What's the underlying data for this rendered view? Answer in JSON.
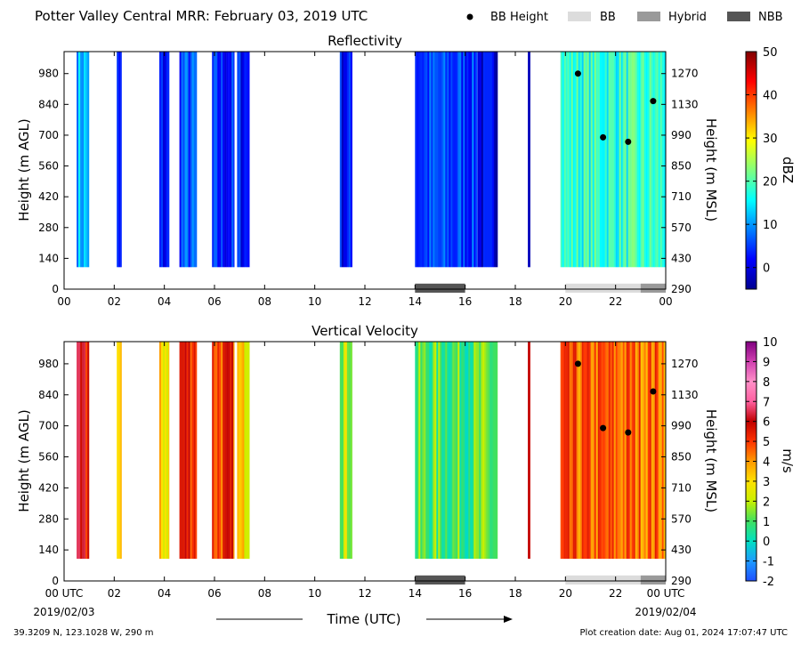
{
  "header": {
    "title": "Potter Valley Central MRR:  February 03, 2019 UTC",
    "legend": [
      {
        "label": "BB Height",
        "kind": "dot",
        "color": "#000000"
      },
      {
        "label": "BB",
        "kind": "box",
        "color": "#dcdcdc"
      },
      {
        "label": "Hybrid",
        "kind": "box",
        "color": "#9a9a9a"
      },
      {
        "label": "NBB",
        "kind": "box",
        "color": "#555555"
      }
    ]
  },
  "footer": {
    "location": "39.3209 N, 123.1028 W, 290 m",
    "creation": "Plot creation date: Aug 01, 2024 17:07:47 UTC",
    "xlabel": "Time (UTC)",
    "start_date": "2019/02/03",
    "end_date": "2019/02/04"
  },
  "chart_data": [
    {
      "type": "heatmap",
      "title": "Reflectivity",
      "ylabel_left": "Height (m AGL)",
      "ylabel_right": "Height (m MSL)",
      "colorbar_label": "dBZ",
      "colorbar_ticks": [
        "50",
        "40",
        "30",
        "20",
        "10",
        "0"
      ],
      "colorbar_range": [
        -5,
        50
      ],
      "xlim": [
        0,
        24
      ],
      "ylim": [
        0,
        1080
      ],
      "x_ticks": [
        "00",
        "02",
        "04",
        "06",
        "08",
        "10",
        "12",
        "14",
        "16",
        "18",
        "20",
        "22",
        "00"
      ],
      "y_ticks_agl": [
        "0",
        "140",
        "280",
        "420",
        "560",
        "700",
        "840",
        "980"
      ],
      "y_ticks_msl": [
        "290",
        "430",
        "570",
        "710",
        "850",
        "990",
        "1130",
        "1270"
      ],
      "precip_segments": [
        {
          "start": 0.5,
          "end": 1.0,
          "value": 12
        },
        {
          "start": 2.1,
          "end": 2.3,
          "value": 2
        },
        {
          "start": 3.8,
          "end": 4.2,
          "value": 2
        },
        {
          "start": 4.6,
          "end": 5.3,
          "value": 6
        },
        {
          "start": 5.9,
          "end": 6.8,
          "value": 3
        },
        {
          "start": 6.9,
          "end": 7.4,
          "value": 3
        },
        {
          "start": 11.0,
          "end": 11.5,
          "value": 2
        },
        {
          "start": 14.0,
          "end": 16.5,
          "value": 5
        },
        {
          "start": 16.5,
          "end": 17.3,
          "value": 0
        },
        {
          "start": 18.5,
          "end": 18.6,
          "value": 2
        },
        {
          "start": 19.8,
          "end": 24.0,
          "value": 18
        }
      ],
      "bb_height_points": [
        {
          "x": 20.5,
          "y": 980
        },
        {
          "x": 21.5,
          "y": 690
        },
        {
          "x": 22.5,
          "y": 670
        },
        {
          "x": 23.5,
          "y": 855
        }
      ],
      "rain_type_bars": [
        {
          "type": "NBB",
          "start": 14.0,
          "end": 16.0
        },
        {
          "type": "BB",
          "start": 20.0,
          "end": 23.0
        },
        {
          "type": "Hybrid",
          "start": 23.0,
          "end": 24.0
        }
      ]
    },
    {
      "type": "heatmap",
      "title": "Vertical Velocity",
      "ylabel_left": "Height (m AGL)",
      "ylabel_right": "Height (m MSL)",
      "colorbar_label": "m/s",
      "colorbar_ticks": [
        "10",
        "9",
        "8",
        "7",
        "6",
        "5",
        "4",
        "3",
        "2",
        "1",
        "0",
        "-1",
        "-2"
      ],
      "colorbar_range": [
        -2,
        10
      ],
      "xlim": [
        0,
        24
      ],
      "ylim": [
        0,
        1080
      ],
      "x_ticks": [
        "00 UTC",
        "02",
        "04",
        "06",
        "08",
        "10",
        "12",
        "14",
        "16",
        "18",
        "20",
        "22",
        "00 UTC"
      ],
      "y_ticks_agl": [
        "0",
        "140",
        "280",
        "420",
        "560",
        "700",
        "840",
        "980"
      ],
      "y_ticks_msl": [
        "290",
        "430",
        "570",
        "710",
        "850",
        "990",
        "1130",
        "1270"
      ],
      "precip_segments": [
        {
          "start": 0.5,
          "end": 1.0,
          "value": 5.5
        },
        {
          "start": 2.1,
          "end": 2.3,
          "value": 3
        },
        {
          "start": 3.8,
          "end": 4.2,
          "value": 3
        },
        {
          "start": 4.6,
          "end": 5.3,
          "value": 5.5
        },
        {
          "start": 5.9,
          "end": 6.8,
          "value": 5
        },
        {
          "start": 6.9,
          "end": 7.4,
          "value": 3
        },
        {
          "start": 11.0,
          "end": 11.5,
          "value": 2
        },
        {
          "start": 14.0,
          "end": 17.3,
          "value": 1
        },
        {
          "start": 18.5,
          "end": 18.6,
          "value": 5.5
        },
        {
          "start": 19.8,
          "end": 24.0,
          "value": 4.5
        }
      ],
      "bb_height_points": [
        {
          "x": 20.5,
          "y": 980
        },
        {
          "x": 21.5,
          "y": 690
        },
        {
          "x": 22.5,
          "y": 670
        },
        {
          "x": 23.5,
          "y": 855
        }
      ],
      "rain_type_bars": [
        {
          "type": "NBB",
          "start": 14.0,
          "end": 16.0
        },
        {
          "type": "BB",
          "start": 20.0,
          "end": 23.0
        },
        {
          "type": "Hybrid",
          "start": 23.0,
          "end": 24.0
        }
      ]
    }
  ],
  "colors": {
    "nbb": "#555555",
    "bb": "#dcdcdc",
    "hybrid": "#9a9a9a"
  }
}
